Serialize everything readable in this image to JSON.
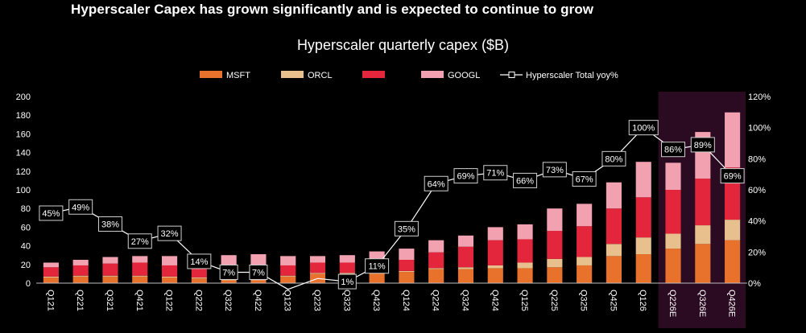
{
  "headline": "Hyperscaler Capex has grown significantly and is expected to continue to grow",
  "colors": {
    "background": "#000000",
    "msft": "#E8722C",
    "orcl": "#E8C08E",
    "third": "#E3263C",
    "googl": "#F2A1B0",
    "line": "#FFFFFF",
    "forecast_shade": "#2A0B22"
  },
  "chart_data": {
    "type": "bar",
    "stacked": true,
    "title": "Hyperscaler quarterly capex ($B)",
    "categories": [
      "Q121",
      "Q221",
      "Q321",
      "Q421",
      "Q122",
      "Q222",
      "Q322",
      "Q422",
      "Q123",
      "Q223",
      "Q323",
      "Q423",
      "Q124",
      "Q224",
      "Q324",
      "Q424",
      "Q125",
      "Q225",
      "Q325",
      "Q425",
      "Q126",
      "Q226E",
      "Q326E",
      "Q426E"
    ],
    "forecast_categories": [
      "Q226E",
      "Q326E",
      "Q426E"
    ],
    "series": [
      {
        "name": "MSFT",
        "values": [
          6,
          7,
          7,
          7,
          6,
          5,
          3,
          3,
          7,
          10,
          10,
          11,
          12,
          15,
          15,
          16,
          16,
          17,
          19,
          29,
          31,
          37,
          42,
          46
        ]
      },
      {
        "name": "ORCL",
        "values": [
          1,
          1,
          1,
          1,
          1,
          1,
          1,
          1,
          1,
          1,
          1,
          1,
          1,
          1,
          2,
          3,
          6,
          9,
          9,
          13,
          18,
          16,
          20,
          22
        ]
      },
      {
        "name": "",
        "values": [
          10,
          11,
          13,
          14,
          12,
          11,
          11,
          13,
          11,
          11,
          11,
          11,
          12,
          17,
          22,
          27,
          25,
          30,
          33,
          38,
          43,
          47,
          50,
          56
        ]
      },
      {
        "name": "GOOGL",
        "values": [
          5,
          6,
          7,
          7,
          10,
          11,
          15,
          14,
          10,
          7,
          8,
          11,
          12,
          13,
          12,
          14,
          16,
          24,
          24,
          28,
          38,
          29,
          50,
          59
        ]
      }
    ],
    "line": {
      "name": "Hyperscaler Total yoy%",
      "values": [
        45,
        49,
        38,
        27,
        32,
        14,
        7,
        7,
        -4,
        3,
        1,
        11,
        35,
        64,
        69,
        71,
        66,
        73,
        67,
        80,
        100,
        86,
        89,
        69
      ],
      "labels": [
        "45%",
        "49%",
        "38%",
        "27%",
        "32%",
        "14%",
        "7%",
        "7%",
        "",
        "",
        "1%",
        "11%",
        "35%",
        "64%",
        "69%",
        "71%",
        "66%",
        "73%",
        "67%",
        "80%",
        "100%",
        "86%",
        "89%",
        "69%"
      ]
    },
    "ylim": [
      0,
      200
    ],
    "y_ticks": [
      "0",
      "20",
      "40",
      "60",
      "80",
      "100",
      "120",
      "140",
      "160",
      "180",
      "200"
    ],
    "y2lim": [
      0,
      120
    ],
    "y2_ticks": [
      "0%",
      "20%",
      "40%",
      "60%",
      "80%",
      "100%",
      "120%"
    ],
    "legend_placement": "top-center",
    "grid": false
  }
}
